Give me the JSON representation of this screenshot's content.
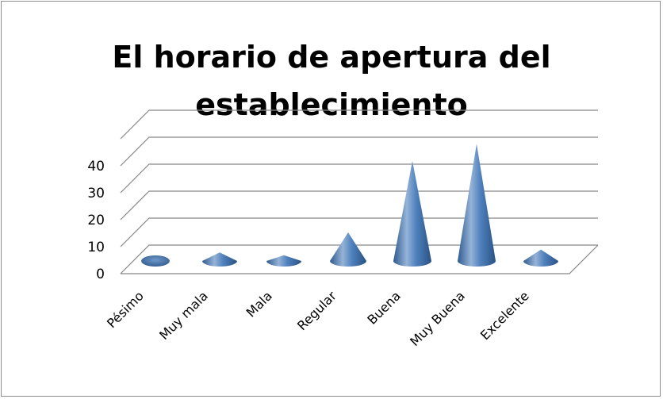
{
  "chart_data": {
    "type": "bar",
    "style": "3d-cone",
    "title_lines": [
      "El horario de apertura del",
      "establecimiento"
    ],
    "categories": [
      "Pésimo",
      "Muy mala",
      "Mala",
      "Regular",
      "Buena",
      "Muy Buena",
      "Excelente"
    ],
    "values": [
      0,
      3,
      2,
      10,
      35,
      41,
      4
    ],
    "y_ticks": [
      "0",
      "10",
      "20",
      "30",
      "40"
    ],
    "ylim": [
      0,
      40
    ],
    "grid": true,
    "legend": "none",
    "colors": {
      "cone_base": "#4f81bd",
      "cone_light": "#95b3d7",
      "cone_dark": "#2f5b8f",
      "grid": "#868686"
    }
  }
}
